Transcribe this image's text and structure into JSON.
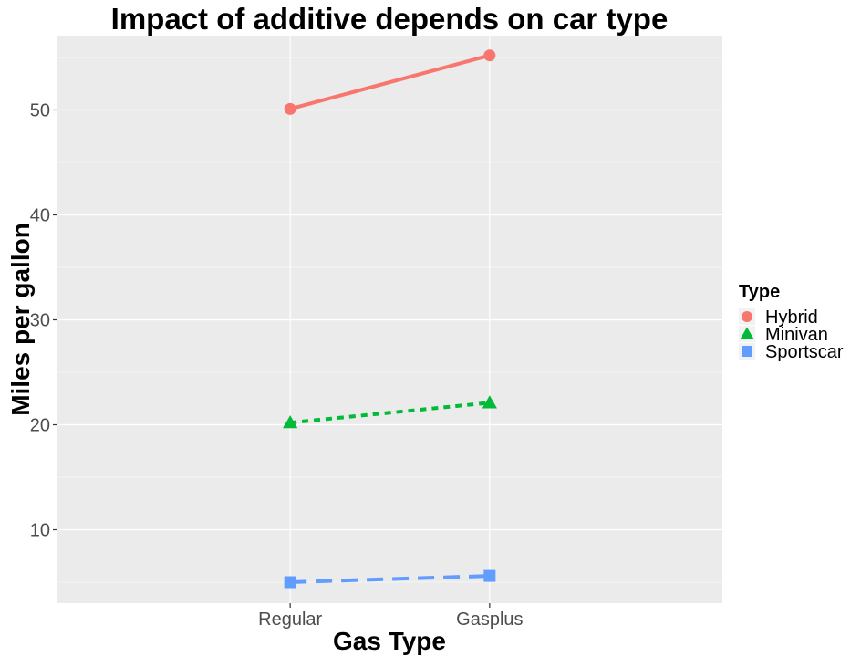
{
  "chart_data": {
    "type": "line",
    "title": "Impact of additive depends on car type",
    "xlabel": "Gas Type",
    "ylabel": "Miles per gallon",
    "categories": [
      "Regular",
      "Gasplus"
    ],
    "ylim": [
      3,
      57
    ],
    "yticks": [
      10,
      20,
      30,
      40,
      50
    ],
    "grid": true,
    "legend": {
      "title": "Type",
      "placement": "right"
    },
    "series": [
      {
        "name": "Hybrid",
        "values": [
          50.1,
          55.2
        ],
        "color": "#F8766D",
        "marker": "circle",
        "linestyle": "solid"
      },
      {
        "name": "Minivan",
        "values": [
          20.2,
          22.1
        ],
        "color": "#00BA38",
        "marker": "triangle",
        "linestyle": "dotted"
      },
      {
        "name": "Sportscar",
        "values": [
          5.0,
          5.6
        ],
        "color": "#619CFF",
        "marker": "square",
        "linestyle": "dashed"
      }
    ]
  }
}
